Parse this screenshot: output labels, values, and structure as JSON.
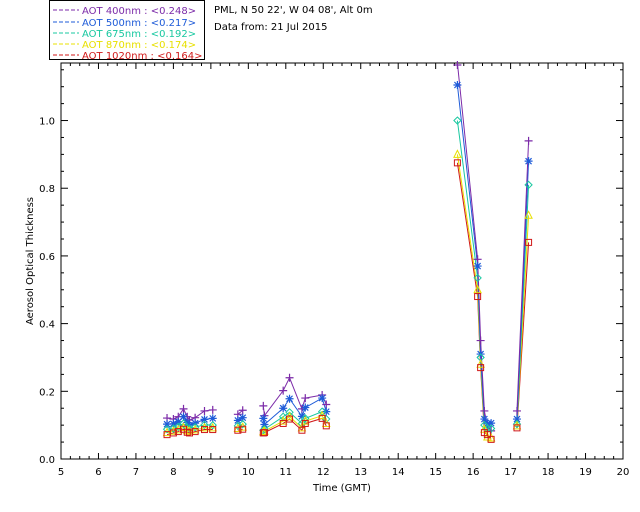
{
  "header": {
    "location": "PML, N 50 22', W 04 08', Alt 0m",
    "date": "Data from: 21 Jul 2015"
  },
  "legend": [
    {
      "label": "AOT  400nm : <0.248>",
      "color": "#7b2aa8"
    },
    {
      "label": "AOT  500nm : <0.217>",
      "color": "#1e5bd8"
    },
    {
      "label": "AOT  675nm : <0.192>",
      "color": "#18c8a0"
    },
    {
      "label": "AOT  870nm : <0.174>",
      "color": "#e8e000"
    },
    {
      "label": "AOT 1020nm : <0.164>",
      "color": "#d01818"
    }
  ],
  "chart_data": {
    "type": "scatter",
    "title": "",
    "xlabel": "Time (GMT)",
    "ylabel": "Aerosol Optical Thickness",
    "xlim": [
      5,
      20
    ],
    "ylim": [
      0,
      1.17
    ],
    "xticks": [
      5,
      6,
      7,
      8,
      9,
      10,
      11,
      12,
      13,
      14,
      15,
      16,
      17,
      18,
      19,
      20
    ],
    "yticks": [
      0.0,
      0.2,
      0.4,
      0.6,
      0.8,
      1.0
    ],
    "ytick_labels": [
      "0.0",
      "0.2",
      "0.4",
      "0.6",
      "0.8",
      "1.0"
    ],
    "grid": false,
    "legend_position": "top-left-outside",
    "series": [
      {
        "name": "AOT  400nm",
        "color": "#7b2aa8",
        "marker": "plus",
        "x": [
          7.83,
          8.0,
          8.13,
          8.27,
          8.37,
          8.43,
          8.58,
          8.83,
          9.05,
          9.72,
          9.85,
          10.4,
          10.43,
          10.93,
          11.1,
          11.43,
          11.52,
          11.97,
          12.08,
          15.58,
          16.12,
          16.2,
          16.3,
          16.38,
          16.48,
          17.17,
          17.48
        ],
        "y": [
          0.121,
          0.118,
          0.125,
          0.148,
          0.125,
          0.115,
          0.122,
          0.142,
          0.145,
          0.132,
          0.144,
          0.157,
          0.128,
          0.202,
          0.24,
          0.148,
          0.18,
          0.189,
          0.161,
          1.17,
          0.59,
          0.35,
          0.142,
          0.098,
          0.083,
          0.142,
          0.94
        ]
      },
      {
        "name": "AOT  500nm",
        "color": "#1e5bd8",
        "marker": "asterisk",
        "x": [
          7.83,
          8.0,
          8.13,
          8.27,
          8.37,
          8.43,
          8.58,
          8.83,
          9.05,
          9.72,
          9.85,
          10.4,
          10.43,
          10.93,
          11.1,
          11.43,
          11.52,
          11.97,
          12.08,
          15.58,
          16.12,
          16.2,
          16.3,
          16.38,
          16.48,
          17.17,
          17.48
        ],
        "y": [
          0.103,
          0.104,
          0.11,
          0.125,
          0.108,
          0.1,
          0.106,
          0.117,
          0.12,
          0.114,
          0.122,
          0.12,
          0.102,
          0.15,
          0.178,
          0.126,
          0.152,
          0.18,
          0.14,
          1.105,
          0.57,
          0.31,
          0.118,
          0.104,
          0.106,
          0.118,
          0.88
        ]
      },
      {
        "name": "AOT  675nm",
        "color": "#18c8a0",
        "marker": "diamond",
        "x": [
          7.83,
          8.0,
          8.13,
          8.27,
          8.37,
          8.43,
          8.58,
          8.83,
          9.05,
          9.72,
          9.85,
          10.4,
          10.43,
          10.93,
          11.1,
          11.43,
          11.52,
          11.97,
          12.08,
          15.58,
          16.12,
          16.2,
          16.3,
          16.38,
          16.48,
          17.17,
          17.48
        ],
        "y": [
          0.088,
          0.09,
          0.095,
          0.105,
          0.092,
          0.09,
          0.094,
          0.101,
          0.1,
          0.098,
          0.103,
          0.085,
          0.088,
          0.125,
          0.138,
          0.105,
          0.12,
          0.14,
          0.118,
          1.0,
          0.535,
          0.3,
          0.1,
          0.09,
          0.09,
          0.103,
          0.81
        ]
      },
      {
        "name": "AOT  870nm",
        "color": "#e8e000",
        "marker": "triangle",
        "x": [
          7.83,
          8.0,
          8.13,
          8.27,
          8.37,
          8.43,
          8.58,
          8.83,
          9.05,
          9.72,
          9.85,
          10.4,
          10.43,
          10.93,
          11.1,
          11.43,
          11.52,
          11.97,
          12.08,
          15.58,
          16.12,
          16.2,
          16.3,
          16.38,
          16.48,
          17.17,
          17.48
        ],
        "y": [
          0.078,
          0.082,
          0.086,
          0.093,
          0.084,
          0.082,
          0.086,
          0.092,
          0.092,
          0.09,
          0.094,
          0.08,
          0.082,
          0.112,
          0.125,
          0.092,
          0.112,
          0.128,
          0.105,
          0.9,
          0.5,
          0.28,
          0.088,
          0.065,
          0.062,
          0.098,
          0.72
        ]
      },
      {
        "name": "AOT 1020nm",
        "color": "#d01818",
        "marker": "square",
        "x": [
          7.83,
          8.0,
          8.13,
          8.27,
          8.37,
          8.43,
          8.58,
          8.83,
          9.05,
          9.72,
          9.85,
          10.4,
          10.43,
          10.93,
          11.1,
          11.43,
          11.52,
          11.97,
          12.08,
          15.58,
          16.12,
          16.2,
          16.3,
          16.38,
          16.48,
          17.17,
          17.48
        ],
        "y": [
          0.072,
          0.077,
          0.081,
          0.088,
          0.079,
          0.077,
          0.081,
          0.087,
          0.087,
          0.085,
          0.088,
          0.077,
          0.078,
          0.105,
          0.118,
          0.085,
          0.105,
          0.12,
          0.098,
          0.875,
          0.48,
          0.27,
          0.078,
          0.072,
          0.058,
          0.092,
          0.64
        ]
      }
    ]
  }
}
